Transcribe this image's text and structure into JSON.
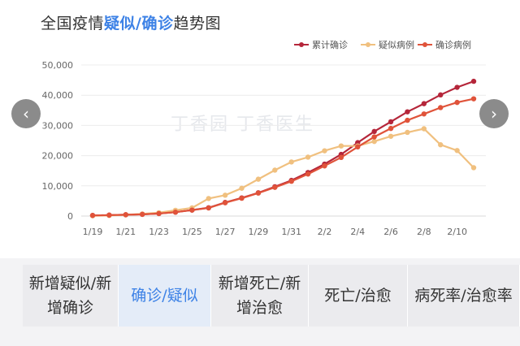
{
  "title": {
    "prefix": "全国疫情",
    "highlight": "疑似/确诊",
    "suffix": "趋势图"
  },
  "watermark": "丁香园  丁香医生",
  "nav": {
    "prev_icon": "‹",
    "next_icon": "›"
  },
  "chart_data": {
    "type": "line",
    "x": [
      "1/19",
      "1/20",
      "1/21",
      "1/22",
      "1/23",
      "1/24",
      "1/25",
      "1/26",
      "1/27",
      "1/28",
      "1/29",
      "1/30",
      "1/31",
      "2/1",
      "2/2",
      "2/3",
      "2/4",
      "2/5",
      "2/6",
      "2/7",
      "2/8",
      "2/9",
      "2/10",
      "2/11"
    ],
    "xticks": [
      "1/19",
      "1/21",
      "1/23",
      "1/25",
      "1/27",
      "1/29",
      "1/31",
      "2/2",
      "2/4",
      "2/6",
      "2/8",
      "2/10"
    ],
    "yticks": [
      "0",
      "10,000",
      "20,000",
      "30,000",
      "40,000",
      "50,000"
    ],
    "ylim": [
      0,
      50000
    ],
    "grid": true,
    "legend_position": "top-right",
    "series": [
      {
        "name": "累计确诊",
        "color": "#b5263a",
        "values": [
          200,
          300,
          440,
          570,
          830,
          1290,
          1980,
          2740,
          4500,
          6000,
          7700,
          9700,
          11800,
          14400,
          17200,
          20400,
          24300,
          28000,
          31200,
          34500,
          37200,
          40100,
          42600,
          44600
        ]
      },
      {
        "name": "疑似病例",
        "color": "#f0c07f",
        "values": [
          100,
          200,
          400,
          700,
          1100,
          1900,
          2700,
          5800,
          6900,
          9200,
          12200,
          15200,
          17900,
          19500,
          21600,
          23200,
          23200,
          24700,
          26400,
          27700,
          28900,
          23600,
          21700,
          16000
        ]
      },
      {
        "name": "确诊病例",
        "color": "#e0533a",
        "values": [
          200,
          300,
          440,
          570,
          830,
          1290,
          1970,
          2680,
          4400,
          5900,
          7600,
          9500,
          11500,
          13900,
          16600,
          19400,
          22900,
          26200,
          29000,
          31700,
          33800,
          35900,
          37600,
          38800
        ]
      }
    ]
  },
  "tabs": [
    {
      "label": "新增疑似/新增确诊",
      "active": false
    },
    {
      "label": "确诊/疑似",
      "active": true
    },
    {
      "label": "新增死亡/新增治愈",
      "active": false
    },
    {
      "label": "死亡/治愈",
      "active": false
    },
    {
      "label": "病死率/治愈率",
      "active": false
    }
  ]
}
